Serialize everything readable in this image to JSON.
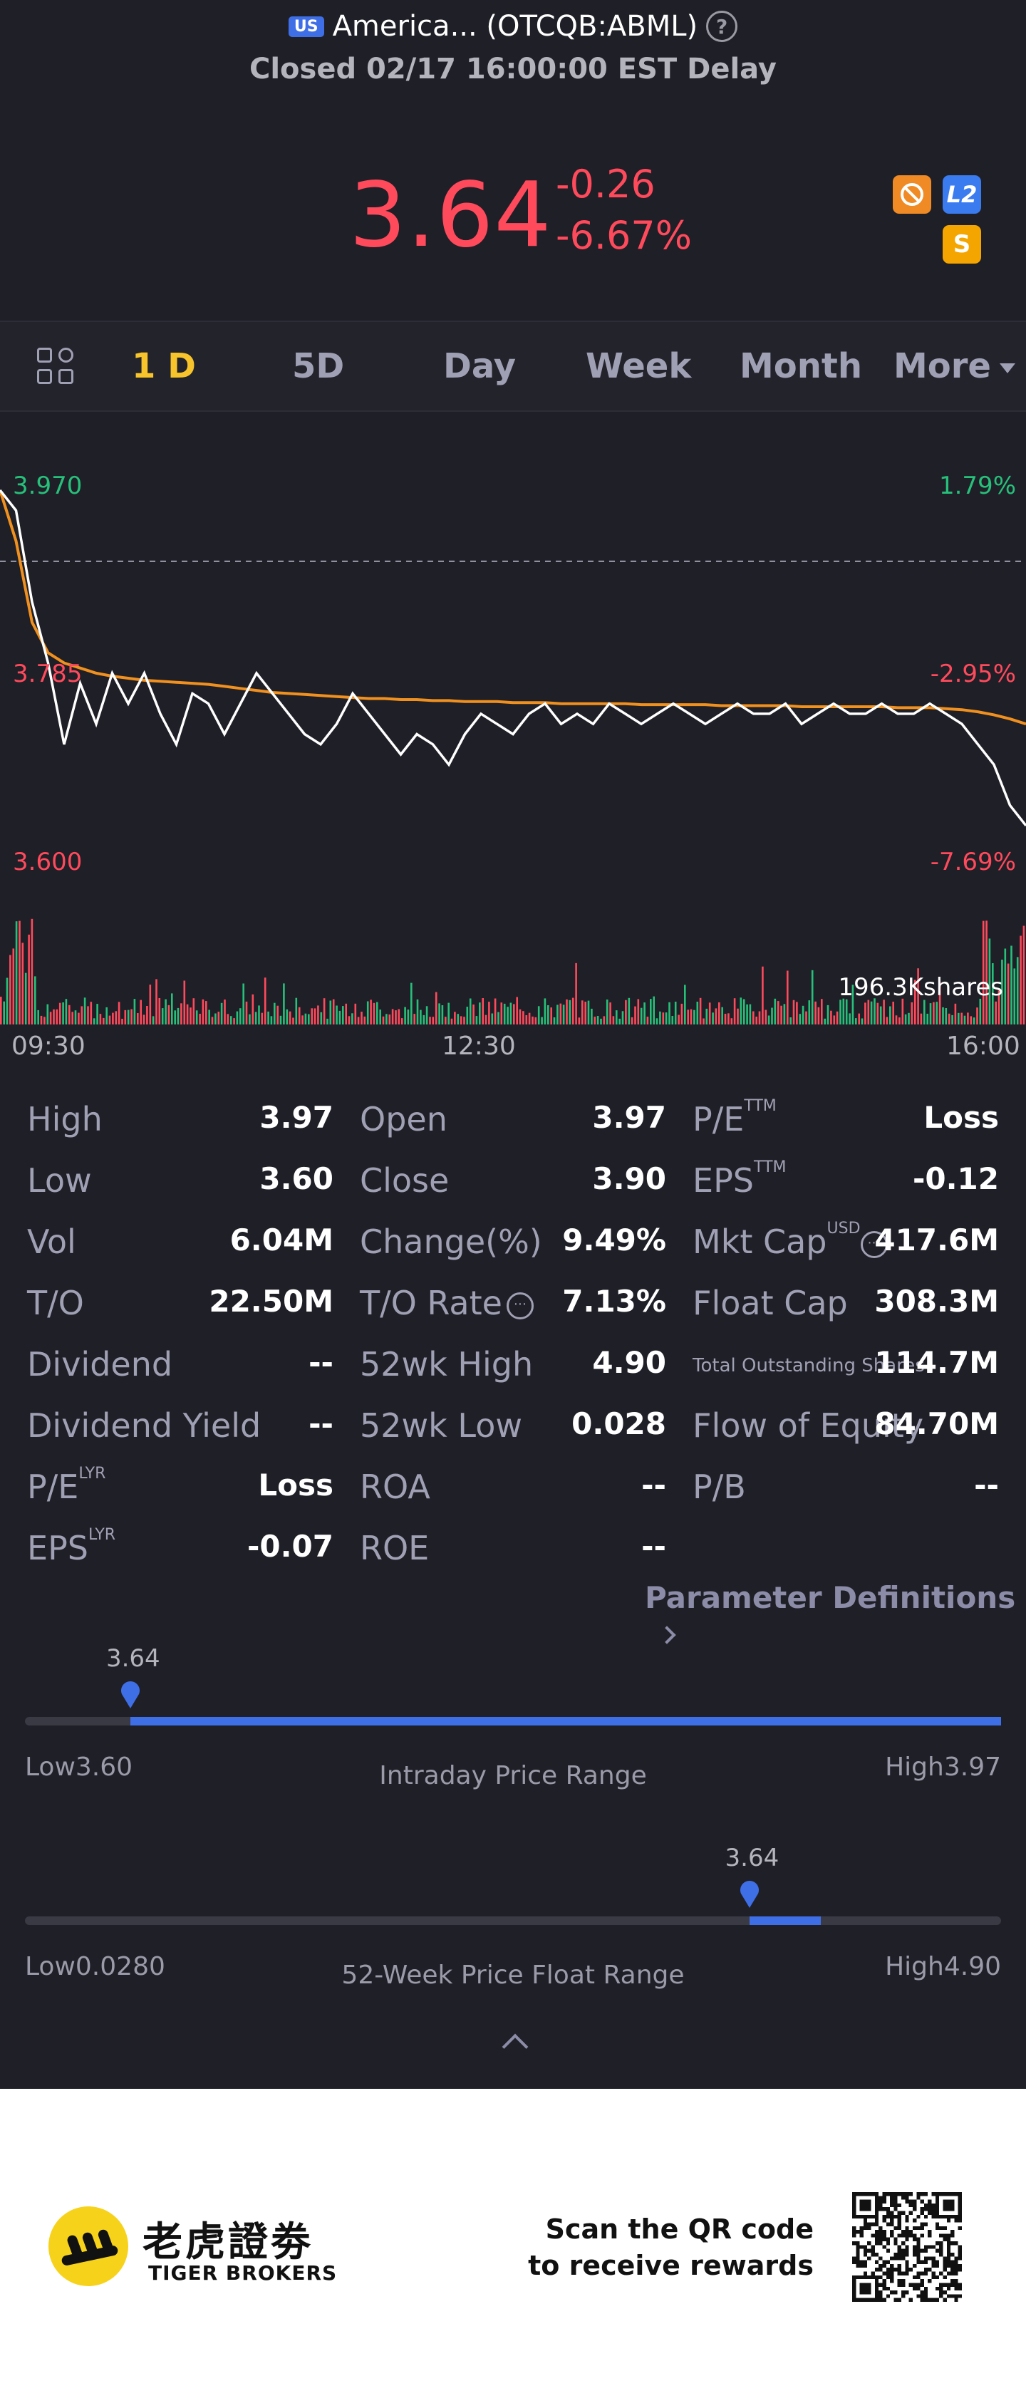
{
  "header": {
    "market_badge": "US",
    "title": "America... (OTCQB:ABML)",
    "status": "Closed 02/17 16:00:00 EST Delay",
    "price": "3.64",
    "change": "-0.26",
    "change_pct": "-6.67%",
    "icons": [
      "no-short-icon",
      "level2-icon",
      "dollar-icon"
    ],
    "l2_label": "L2",
    "dollar_label": "S"
  },
  "tabs": {
    "items": [
      "1 D",
      "5D",
      "Day",
      "Week",
      "Month",
      "More"
    ],
    "active": "1 D"
  },
  "chart_data": {
    "type": "line",
    "y_left_ticks": [
      "3.970",
      "3.785",
      "3.600"
    ],
    "y_right_ticks": [
      "1.79%",
      "-2.95%",
      "-7.69%"
    ],
    "x_ticks": [
      "09:30",
      "12:30",
      "16:00"
    ],
    "ylim": [
      3.6,
      3.97
    ],
    "prev_close": 3.9,
    "volume_label": "196.3Kshares",
    "series": [
      {
        "values": [
          3.97,
          3.95,
          3.86,
          3.8,
          3.72,
          3.78,
          3.74,
          3.79,
          3.76,
          3.79,
          3.75,
          3.72,
          3.77,
          3.76,
          3.73,
          3.76,
          3.79,
          3.77,
          3.75,
          3.73,
          3.72,
          3.74,
          3.77,
          3.75,
          3.73,
          3.71,
          3.73,
          3.72,
          3.7,
          3.73,
          3.75,
          3.74,
          3.73,
          3.75,
          3.76,
          3.74,
          3.75,
          3.74,
          3.76,
          3.75,
          3.74,
          3.75,
          3.76,
          3.75,
          3.74,
          3.75,
          3.76,
          3.75,
          3.75,
          3.76,
          3.74,
          3.75,
          3.76,
          3.75,
          3.75,
          3.76,
          3.75,
          3.75,
          3.76,
          3.75,
          3.74,
          3.72,
          3.7,
          3.66,
          3.64
        ]
      },
      {
        "values": [
          3.97,
          3.92,
          3.84,
          3.81,
          3.8,
          3.795,
          3.79,
          3.787,
          3.785,
          3.783,
          3.782,
          3.781,
          3.78,
          3.779,
          3.777,
          3.775,
          3.773,
          3.771,
          3.77,
          3.769,
          3.768,
          3.767,
          3.766,
          3.765,
          3.765,
          3.764,
          3.764,
          3.763,
          3.763,
          3.762,
          3.762,
          3.762,
          3.761,
          3.761,
          3.761,
          3.76,
          3.76,
          3.76,
          3.76,
          3.76,
          3.759,
          3.759,
          3.759,
          3.759,
          3.759,
          3.758,
          3.758,
          3.758,
          3.758,
          3.758,
          3.757,
          3.757,
          3.757,
          3.757,
          3.757,
          3.757,
          3.756,
          3.756,
          3.756,
          3.755,
          3.754,
          3.752,
          3.749,
          3.745,
          3.74
        ]
      }
    ]
  },
  "stats": {
    "col1": [
      {
        "label": "High",
        "value": "3.97"
      },
      {
        "label": "Low",
        "value": "3.60"
      },
      {
        "label": "Vol",
        "value": "6.04M"
      },
      {
        "label": "T/O",
        "value": "22.50M"
      },
      {
        "label": "Dividend",
        "value": "--"
      },
      {
        "label": "Dividend Yield",
        "value": "--"
      },
      {
        "label": "P/E",
        "sup": "LYR",
        "value": "Loss"
      },
      {
        "label": "EPS",
        "sup": "LYR",
        "value": "-0.07"
      }
    ],
    "col2": [
      {
        "label": "Open",
        "value": "3.97"
      },
      {
        "label": "Close",
        "value": "3.90"
      },
      {
        "label": "Change(%)",
        "value": "9.49%"
      },
      {
        "label": "T/O Rate",
        "value": "7.13%"
      },
      {
        "label": "52wk High",
        "value": "4.90"
      },
      {
        "label": "52wk Low",
        "value": "0.028"
      },
      {
        "label": "ROA",
        "value": "--"
      },
      {
        "label": "ROE",
        "value": "--"
      }
    ],
    "col3": [
      {
        "label": "P/E",
        "sup": "TTM",
        "value": "Loss"
      },
      {
        "label": "EPS",
        "sup": "TTM",
        "value": "-0.12"
      },
      {
        "label": "Mkt Cap",
        "sup": "USD",
        "value": "417.6M"
      },
      {
        "label": "Float Cap",
        "value": "308.3M"
      },
      {
        "label": "Total Outstanding Shares",
        "value": "114.7M"
      },
      {
        "label": "Flow of Equity",
        "value": "84.70M"
      },
      {
        "label": "P/B",
        "value": "--"
      }
    ],
    "info_glyph": "⋯",
    "param_link": "Parameter Definitions"
  },
  "intraday_range": {
    "current": "3.64",
    "low_label": "Low",
    "low": "3.60",
    "high_label": "High",
    "high": "3.97",
    "title": "Intraday Price Range",
    "position": 0.108
  },
  "week52_range": {
    "current": "3.64",
    "low_label": "Low",
    "low": "0.0280",
    "high_label": "High",
    "high": "4.90",
    "title": "52-Week Price Float Range",
    "position": 0.742
  },
  "footer": {
    "brand_cn": "老虎證劵",
    "brand_en": "TIGER BROKERS",
    "scan_line1": "Scan the QR code",
    "scan_line2": "to receive rewards"
  },
  "colors": {
    "up": "#27c07a",
    "down": "#ff4a5c",
    "accent": "#f7c42b",
    "avg_line": "#f0901e",
    "range_fill": "#3f6fe6"
  }
}
